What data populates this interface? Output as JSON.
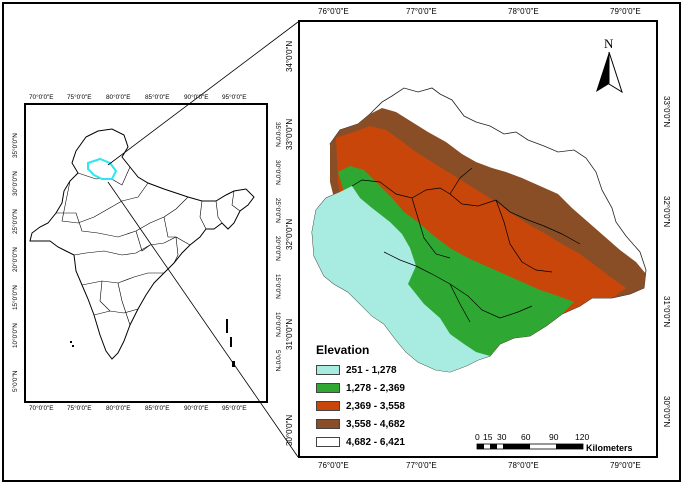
{
  "inset": {
    "lon_ticks": [
      "70°0'0\"E",
      "75°0'0\"E",
      "80°0'0\"E",
      "85°0'0\"E",
      "90°0'0\"E",
      "95°0'0\"E"
    ],
    "lat_ticks": [
      "35°0'0\"N",
      "30°0'0\"N",
      "25°0'0\"N",
      "20°0'0\"N",
      "15°0'0\"N",
      "10°0'0\"N",
      "5°0'0\"N"
    ],
    "outline_color": "#000000",
    "highlight_color": "#2ee6f0"
  },
  "main": {
    "lon_ticks": [
      "76°0'0\"E",
      "77°0'0\"E",
      "78°0'0\"E",
      "79°0'0\"E"
    ],
    "lat_ticks": [
      "34°0'0\"N",
      "33°0'0\"N",
      "32°0'0\"N",
      "31°0'0\"N",
      "30°0'0\"N"
    ],
    "north_arrow": {
      "label": "N",
      "icon": "north-arrow-icon"
    },
    "scale_bar": {
      "labels": [
        "0",
        "15",
        "30",
        "60",
        "90",
        "120"
      ],
      "unit": "Kilometers"
    }
  },
  "legend": {
    "title": "Elevation",
    "classes": [
      {
        "label": "251 - 1,278",
        "color": "#a8ebe0"
      },
      {
        "label": "1,278 - 2,369",
        "color": "#2ea832"
      },
      {
        "label": "2,369 - 3,558",
        "color": "#c8460a"
      },
      {
        "label": "3,558 - 4,682",
        "color": "#8a4e26"
      },
      {
        "label": "4,682 - 6,421",
        "color": "#ffffff"
      }
    ]
  }
}
